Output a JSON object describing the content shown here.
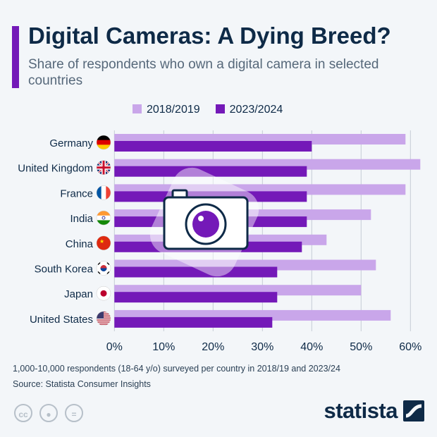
{
  "header": {
    "title": "Digital Cameras: A Dying Breed?",
    "subtitle": "Share of respondents who own a digital camera in selected countries"
  },
  "colors": {
    "accent": "#7419b8",
    "series_2018": "#c9a6ea",
    "series_2023": "#7419b8",
    "title": "#0e2a47"
  },
  "chart_data": {
    "type": "bar",
    "orientation": "horizontal",
    "categories": [
      "Germany",
      "United Kingdom",
      "France",
      "India",
      "China",
      "South Korea",
      "Japan",
      "United States"
    ],
    "series": [
      {
        "name": "2018/2019",
        "values": [
          59,
          62,
          59,
          52,
          43,
          53,
          50,
          56
        ]
      },
      {
        "name": "2023/2024",
        "values": [
          40,
          39,
          39,
          39,
          38,
          33,
          33,
          32
        ]
      }
    ],
    "xlim": [
      0,
      62
    ],
    "x_ticks": [
      "0%",
      "10%",
      "20%",
      "30%",
      "40%",
      "50%",
      "60%"
    ],
    "x_tick_values": [
      0,
      10,
      20,
      30,
      40,
      50,
      60
    ],
    "grid": true,
    "legend_position": "top",
    "title": "Digital Cameras: A Dying Breed?"
  },
  "flags": [
    "germany-flag-icon",
    "uk-flag-icon",
    "france-flag-icon",
    "india-flag-icon",
    "china-flag-icon",
    "south-korea-flag-icon",
    "japan-flag-icon",
    "us-flag-icon"
  ],
  "footer": {
    "note": "1,000-10,000 respondents (18-64 y/o) surveyed per country in 2018/19 and 2023/24",
    "source": "Source: Statista Consumer Insights"
  },
  "license_icons": [
    "cc-icon",
    "attribution-icon",
    "no-derivatives-icon"
  ],
  "logo": {
    "text": "statista"
  }
}
